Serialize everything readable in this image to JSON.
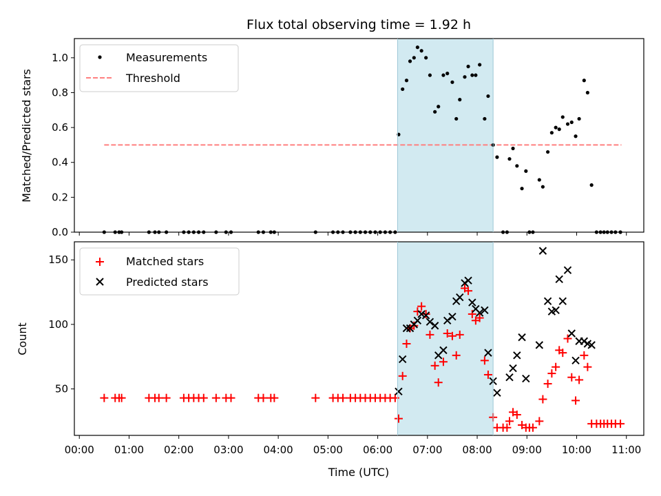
{
  "chart_data": [
    {
      "type": "scatter",
      "title": "Flux total observing time = 1.92 h",
      "xlabel": "",
      "ylabel": "Matched/Predicted stars",
      "xlim": [
        -0.1,
        11.35
      ],
      "ylim": [
        0,
        1.11
      ],
      "yticks": [
        0.0,
        0.2,
        0.4,
        0.6,
        0.8,
        1.0
      ],
      "ytick_labels": [
        "0.0",
        "0.2",
        "0.4",
        "0.6",
        "0.8",
        "1.0"
      ],
      "highlight_span": [
        6.4,
        8.32
      ],
      "highlight_color": "#add8e6",
      "legend": [
        {
          "label": "Measurements",
          "marker": "dot",
          "color": "#000000"
        },
        {
          "label": "Threshold",
          "marker": "dashed-line",
          "color": "#ff7f7f"
        }
      ],
      "threshold": {
        "value": 0.5,
        "x_range": [
          0.5,
          10.9
        ],
        "color": "#ff7f7f"
      },
      "series": [
        {
          "name": "Measurements",
          "color": "#000000",
          "points": [
            [
              0.5,
              0
            ],
            [
              0.72,
              0
            ],
            [
              0.8,
              0
            ],
            [
              0.85,
              0
            ],
            [
              1.4,
              0
            ],
            [
              1.52,
              0
            ],
            [
              1.6,
              0
            ],
            [
              1.75,
              0
            ],
            [
              2.1,
              0
            ],
            [
              2.2,
              0
            ],
            [
              2.3,
              0
            ],
            [
              2.4,
              0
            ],
            [
              2.5,
              0
            ],
            [
              2.75,
              0
            ],
            [
              2.95,
              0
            ],
            [
              3.05,
              0
            ],
            [
              3.6,
              0
            ],
            [
              3.7,
              0
            ],
            [
              3.85,
              0
            ],
            [
              3.92,
              0
            ],
            [
              4.75,
              0
            ],
            [
              5.1,
              0
            ],
            [
              5.2,
              0
            ],
            [
              5.3,
              0
            ],
            [
              5.45,
              0
            ],
            [
              5.55,
              0
            ],
            [
              5.65,
              0
            ],
            [
              5.75,
              0
            ],
            [
              5.85,
              0
            ],
            [
              5.95,
              0
            ],
            [
              6.05,
              0
            ],
            [
              6.15,
              0
            ],
            [
              6.25,
              0
            ],
            [
              6.35,
              0
            ],
            [
              6.42,
              0.56
            ],
            [
              6.5,
              0.82
            ],
            [
              6.58,
              0.87
            ],
            [
              6.65,
              0.98
            ],
            [
              6.73,
              1.0
            ],
            [
              6.8,
              1.06
            ],
            [
              6.88,
              1.04
            ],
            [
              6.97,
              1.0
            ],
            [
              7.05,
              0.9
            ],
            [
              7.15,
              0.69
            ],
            [
              7.22,
              0.72
            ],
            [
              7.32,
              0.9
            ],
            [
              7.4,
              0.91
            ],
            [
              7.5,
              0.86
            ],
            [
              7.58,
              0.65
            ],
            [
              7.65,
              0.76
            ],
            [
              7.75,
              0.89
            ],
            [
              7.82,
              0.95
            ],
            [
              7.9,
              0.9
            ],
            [
              7.97,
              0.9
            ],
            [
              8.05,
              0.96
            ],
            [
              8.15,
              0.65
            ],
            [
              8.22,
              0.78
            ],
            [
              8.32,
              0.5
            ],
            [
              8.4,
              0.43
            ],
            [
              8.52,
              0
            ],
            [
              8.6,
              0
            ],
            [
              8.65,
              0.42
            ],
            [
              8.72,
              0.48
            ],
            [
              8.8,
              0.38
            ],
            [
              8.9,
              0.25
            ],
            [
              8.98,
              0.35
            ],
            [
              9.05,
              0
            ],
            [
              9.12,
              0
            ],
            [
              9.25,
              0.3
            ],
            [
              9.32,
              0.26
            ],
            [
              9.42,
              0.46
            ],
            [
              9.5,
              0.57
            ],
            [
              9.58,
              0.6
            ],
            [
              9.65,
              0.59
            ],
            [
              9.72,
              0.66
            ],
            [
              9.82,
              0.62
            ],
            [
              9.9,
              0.63
            ],
            [
              9.98,
              0.55
            ],
            [
              10.05,
              0.65
            ],
            [
              10.15,
              0.87
            ],
            [
              10.22,
              0.8
            ],
            [
              10.3,
              0.27
            ],
            [
              10.4,
              0
            ],
            [
              10.48,
              0
            ],
            [
              10.55,
              0
            ],
            [
              10.62,
              0
            ],
            [
              10.7,
              0
            ],
            [
              10.78,
              0
            ],
            [
              10.88,
              0
            ]
          ]
        }
      ]
    },
    {
      "type": "scatter",
      "title": "",
      "xlabel": "Time (UTC)",
      "ylabel": "Count",
      "xlim": [
        -0.1,
        11.35
      ],
      "ylim": [
        14,
        164
      ],
      "yticks": [
        50,
        100,
        150
      ],
      "ytick_labels": [
        "50",
        "100",
        "150"
      ],
      "xticks": [
        0,
        1,
        2,
        3,
        4,
        5,
        6,
        7,
        8,
        9,
        10,
        11
      ],
      "xtick_labels": [
        "00:00",
        "01:00",
        "02:00",
        "03:00",
        "04:00",
        "05:00",
        "06:00",
        "07:00",
        "08:00",
        "09:00",
        "10:00",
        "11:00"
      ],
      "highlight_span": [
        6.4,
        8.32
      ],
      "highlight_color": "#add8e6",
      "legend": [
        {
          "label": "Matched stars",
          "marker": "plus",
          "color": "#ff0000"
        },
        {
          "label": "Predicted stars",
          "marker": "x",
          "color": "#000000"
        }
      ],
      "series": [
        {
          "name": "Matched stars",
          "marker": "plus",
          "color": "#ff0000",
          "points": [
            [
              0.5,
              43
            ],
            [
              0.72,
              43
            ],
            [
              0.8,
              43
            ],
            [
              0.85,
              43
            ],
            [
              1.4,
              43
            ],
            [
              1.52,
              43
            ],
            [
              1.6,
              43
            ],
            [
              1.75,
              43
            ],
            [
              2.1,
              43
            ],
            [
              2.2,
              43
            ],
            [
              2.3,
              43
            ],
            [
              2.4,
              43
            ],
            [
              2.5,
              43
            ],
            [
              2.75,
              43
            ],
            [
              2.95,
              43
            ],
            [
              3.05,
              43
            ],
            [
              3.6,
              43
            ],
            [
              3.7,
              43
            ],
            [
              3.85,
              43
            ],
            [
              3.92,
              43
            ],
            [
              4.75,
              43
            ],
            [
              5.1,
              43
            ],
            [
              5.2,
              43
            ],
            [
              5.3,
              43
            ],
            [
              5.45,
              43
            ],
            [
              5.55,
              43
            ],
            [
              5.65,
              43
            ],
            [
              5.75,
              43
            ],
            [
              5.85,
              43
            ],
            [
              5.95,
              43
            ],
            [
              6.05,
              43
            ],
            [
              6.15,
              43
            ],
            [
              6.25,
              43
            ],
            [
              6.35,
              43
            ],
            [
              6.42,
              27
            ],
            [
              6.5,
              60
            ],
            [
              6.58,
              85
            ],
            [
              6.65,
              97
            ],
            [
              6.73,
              99
            ],
            [
              6.8,
              110
            ],
            [
              6.88,
              114
            ],
            [
              6.97,
              108
            ],
            [
              7.05,
              92
            ],
            [
              7.15,
              68
            ],
            [
              7.22,
              55
            ],
            [
              7.32,
              71
            ],
            [
              7.4,
              93
            ],
            [
              7.5,
              91
            ],
            [
              7.58,
              76
            ],
            [
              7.65,
              92
            ],
            [
              7.75,
              128
            ],
            [
              7.82,
              126
            ],
            [
              7.9,
              108
            ],
            [
              7.97,
              103
            ],
            [
              8.05,
              105
            ],
            [
              8.15,
              72
            ],
            [
              8.22,
              61
            ],
            [
              8.32,
              28
            ],
            [
              8.4,
              20
            ],
            [
              8.52,
              20
            ],
            [
              8.6,
              20
            ],
            [
              8.65,
              25
            ],
            [
              8.72,
              32
            ],
            [
              8.8,
              30
            ],
            [
              8.9,
              22
            ],
            [
              8.98,
              20
            ],
            [
              9.05,
              20
            ],
            [
              9.12,
              20
            ],
            [
              9.25,
              25
            ],
            [
              9.32,
              42
            ],
            [
              9.42,
              54
            ],
            [
              9.5,
              62
            ],
            [
              9.58,
              67
            ],
            [
              9.65,
              80
            ],
            [
              9.72,
              78
            ],
            [
              9.82,
              89
            ],
            [
              9.9,
              59
            ],
            [
              9.98,
              41
            ],
            [
              10.05,
              57
            ],
            [
              10.15,
              76
            ],
            [
              10.22,
              67
            ],
            [
              10.3,
              23
            ],
            [
              10.4,
              23
            ],
            [
              10.48,
              23
            ],
            [
              10.55,
              23
            ],
            [
              10.62,
              23
            ],
            [
              10.7,
              23
            ],
            [
              10.78,
              23
            ],
            [
              10.88,
              23
            ]
          ]
        },
        {
          "name": "Predicted stars",
          "marker": "x",
          "color": "#000000",
          "points": [
            [
              6.42,
              48
            ],
            [
              6.5,
              73
            ],
            [
              6.58,
              97
            ],
            [
              6.65,
              97
            ],
            [
              6.73,
              100
            ],
            [
              6.8,
              103
            ],
            [
              6.88,
              108
            ],
            [
              6.97,
              107
            ],
            [
              7.05,
              102
            ],
            [
              7.15,
              99
            ],
            [
              7.22,
              76
            ],
            [
              7.32,
              80
            ],
            [
              7.4,
              103
            ],
            [
              7.5,
              106
            ],
            [
              7.58,
              118
            ],
            [
              7.65,
              121
            ],
            [
              7.75,
              132
            ],
            [
              7.82,
              134
            ],
            [
              7.9,
              117
            ],
            [
              7.97,
              112
            ],
            [
              8.05,
              109
            ],
            [
              8.15,
              111
            ],
            [
              8.22,
              78
            ],
            [
              8.32,
              56
            ],
            [
              8.4,
              47
            ],
            [
              8.65,
              59
            ],
            [
              8.72,
              66
            ],
            [
              8.8,
              76
            ],
            [
              8.9,
              90
            ],
            [
              8.98,
              58
            ],
            [
              9.25,
              84
            ],
            [
              9.32,
              157
            ],
            [
              9.42,
              118
            ],
            [
              9.5,
              110
            ],
            [
              9.58,
              111
            ],
            [
              9.65,
              135
            ],
            [
              9.72,
              118
            ],
            [
              9.82,
              142
            ],
            [
              9.9,
              93
            ],
            [
              9.98,
              72
            ],
            [
              10.05,
              87
            ],
            [
              10.15,
              87
            ],
            [
              10.22,
              85
            ],
            [
              10.3,
              84
            ]
          ]
        }
      ]
    }
  ]
}
